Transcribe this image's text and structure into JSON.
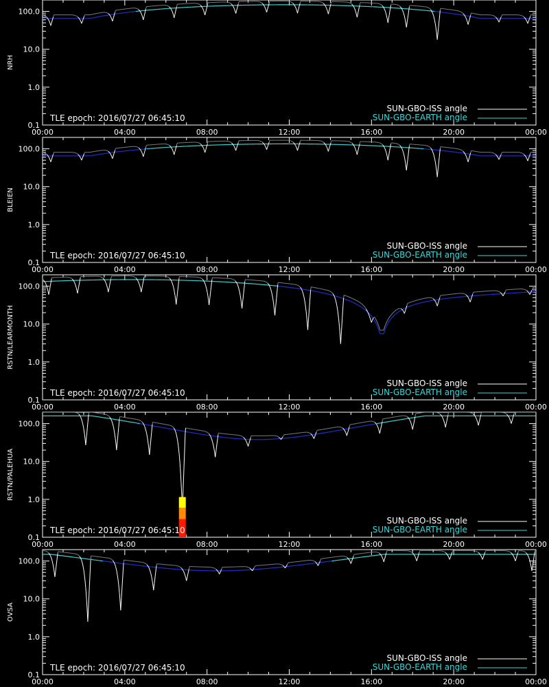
{
  "legend": {
    "iss_label": "SUN-GBO-ISS angle",
    "earth_label": "SUN-GBO-EARTH angle"
  },
  "epoch_text": "TLE epoch: 2016/07/27 06:45:10",
  "colors": {
    "iss": "#ffffff",
    "iss_far": "#8a8a8a",
    "earth_near": "#1f2fd6",
    "earth_far": "#3fd6d6",
    "frame": "#ffffff",
    "flare_low": "#ff1a00",
    "flare_mid": "#ff8a00",
    "flare_high": "#ffff00"
  },
  "chart_data": [
    {
      "type": "line",
      "ylabel": "NRH",
      "yscale": "log",
      "ylim": [
        0.1,
        200
      ],
      "xlim": [
        0,
        24
      ],
      "yticks": [
        "0.1",
        "1.0",
        "10.0",
        "100.0"
      ],
      "xticks": [
        "00:00",
        "04:00",
        "08:00",
        "12:00",
        "16:00",
        "20:00",
        "00:00"
      ],
      "earth_angle": {
        "min": 65,
        "max": 150,
        "peak_time": 11.8
      },
      "iss_dips": [
        {
          "t": 0.4,
          "min": 42
        },
        {
          "t": 1.9,
          "min": 48
        },
        {
          "t": 3.4,
          "min": 55
        },
        {
          "t": 4.9,
          "min": 60
        },
        {
          "t": 6.4,
          "min": 68
        },
        {
          "t": 7.9,
          "min": 80
        },
        {
          "t": 9.4,
          "min": 88
        },
        {
          "t": 10.9,
          "min": 95
        },
        {
          "t": 12.4,
          "min": 90
        },
        {
          "t": 13.9,
          "min": 85
        },
        {
          "t": 15.3,
          "min": 70
        },
        {
          "t": 16.8,
          "min": 50
        },
        {
          "t": 17.7,
          "min": 38
        },
        {
          "t": 19.2,
          "min": 18
        },
        {
          "t": 20.7,
          "min": 45
        },
        {
          "t": 22.2,
          "min": 52
        },
        {
          "t": 23.6,
          "min": 48
        }
      ],
      "flare": null
    },
    {
      "type": "line",
      "ylabel": "BLEIEN",
      "yscale": "log",
      "ylim": [
        0.1,
        200
      ],
      "xlim": [
        0,
        24
      ],
      "yticks": [
        "0.1",
        "1.0",
        "10.0",
        "100.0"
      ],
      "xticks": [
        "00:00",
        "04:00",
        "08:00",
        "12:00",
        "16:00",
        "20:00",
        "00:00"
      ],
      "earth_angle": {
        "min": 65,
        "max": 135,
        "peak_time": 11.8
      },
      "iss_dips": [
        {
          "t": 0.4,
          "min": 45
        },
        {
          "t": 1.9,
          "min": 50
        },
        {
          "t": 3.4,
          "min": 55
        },
        {
          "t": 4.9,
          "min": 62
        },
        {
          "t": 6.4,
          "min": 70
        },
        {
          "t": 7.9,
          "min": 80
        },
        {
          "t": 9.4,
          "min": 90
        },
        {
          "t": 10.9,
          "min": 95
        },
        {
          "t": 12.4,
          "min": 90
        },
        {
          "t": 13.9,
          "min": 85
        },
        {
          "t": 15.3,
          "min": 70
        },
        {
          "t": 16.8,
          "min": 50
        },
        {
          "t": 17.7,
          "min": 27
        },
        {
          "t": 19.2,
          "min": 18
        },
        {
          "t": 20.7,
          "min": 45
        },
        {
          "t": 22.2,
          "min": 52
        },
        {
          "t": 23.6,
          "min": 48
        }
      ],
      "flare": null
    },
    {
      "type": "line",
      "ylabel": "RSTN/LEARMONTH",
      "yscale": "log",
      "ylim": [
        0.1,
        200
      ],
      "xlim": [
        0,
        24
      ],
      "yticks": [
        "0.1",
        "1.0",
        "10.0",
        "100.0"
      ],
      "xticks": [
        "00:00",
        "04:00",
        "08:00",
        "12:00",
        "16:00",
        "20:00",
        "00:00"
      ],
      "earth_angle": {
        "min": 5.5,
        "max": 150,
        "peak_time": 4.5,
        "trough_time": 16.5
      },
      "iss_dips": [
        {
          "t": 0.3,
          "min": 60
        },
        {
          "t": 1.7,
          "min": 65
        },
        {
          "t": 3.2,
          "min": 70
        },
        {
          "t": 4.8,
          "min": 70
        },
        {
          "t": 6.5,
          "min": 33
        },
        {
          "t": 8.1,
          "min": 32
        },
        {
          "t": 9.7,
          "min": 26
        },
        {
          "t": 11.3,
          "min": 17
        },
        {
          "t": 12.9,
          "min": 7
        },
        {
          "t": 14.5,
          "min": 3
        },
        {
          "t": 16.0,
          "min": 11
        },
        {
          "t": 17.6,
          "min": 19
        },
        {
          "t": 19.2,
          "min": 30
        },
        {
          "t": 20.8,
          "min": 38
        },
        {
          "t": 22.4,
          "min": 55
        },
        {
          "t": 23.7,
          "min": 60
        }
      ],
      "flare": null
    },
    {
      "type": "line",
      "ylabel": "RSTN/PALEHUA",
      "yscale": "log",
      "ylim": [
        0.1,
        200
      ],
      "xlim": [
        0,
        24
      ],
      "yticks": [
        "0.1",
        "1.0",
        "10.0",
        "100.0"
      ],
      "xticks": [
        "00:00",
        "04:00",
        "08:00",
        "12:00",
        "16:00",
        "20:00",
        "00:00"
      ],
      "earth_angle": {
        "min": 38,
        "max": 160,
        "trough_time": 10.5
      },
      "iss_dips": [
        {
          "t": 2.1,
          "min": 27
        },
        {
          "t": 3.6,
          "min": 20
        },
        {
          "t": 5.2,
          "min": 15
        },
        {
          "t": 6.8,
          "min": 0.5
        },
        {
          "t": 8.4,
          "min": 13
        },
        {
          "t": 10.0,
          "min": 25
        },
        {
          "t": 11.6,
          "min": 38
        },
        {
          "t": 13.2,
          "min": 40
        },
        {
          "t": 14.8,
          "min": 48
        },
        {
          "t": 16.4,
          "min": 55
        },
        {
          "t": 18.0,
          "min": 70
        },
        {
          "t": 19.6,
          "min": 80
        },
        {
          "t": 21.2,
          "min": 90
        },
        {
          "t": 22.8,
          "min": 100
        }
      ],
      "flare": {
        "t": 6.8,
        "segments": [
          {
            "from": 0.1,
            "to": 0.3,
            "level": "low"
          },
          {
            "from": 0.3,
            "to": 0.6,
            "level": "mid"
          },
          {
            "from": 0.6,
            "to": 1.15,
            "level": "high"
          }
        ]
      }
    },
    {
      "type": "line",
      "ylabel": "OVSA",
      "yscale": "log",
      "ylim": [
        0.1,
        200
      ],
      "xlim": [
        0,
        24
      ],
      "yticks": [
        "0.1",
        "1.0",
        "10.0",
        "100.0"
      ],
      "xticks": [
        "00:00",
        "04:00",
        "08:00",
        "12:00",
        "16:00",
        "20:00",
        "00:00"
      ],
      "earth_angle": {
        "min": 55,
        "max": 150,
        "trough_time": 8.5,
        "end_value": 115,
        "start_value": 115
      },
      "iss_dips": [
        {
          "t": 0.6,
          "min": 38
        },
        {
          "t": 2.2,
          "min": 2.5
        },
        {
          "t": 3.8,
          "min": 5
        },
        {
          "t": 5.4,
          "min": 17
        },
        {
          "t": 7.0,
          "min": 30
        },
        {
          "t": 8.6,
          "min": 45
        },
        {
          "t": 10.2,
          "min": 55
        },
        {
          "t": 11.8,
          "min": 65
        },
        {
          "t": 13.4,
          "min": 75
        },
        {
          "t": 15.0,
          "min": 85
        },
        {
          "t": 16.6,
          "min": 95
        },
        {
          "t": 18.2,
          "min": 100
        },
        {
          "t": 19.8,
          "min": 110
        },
        {
          "t": 21.4,
          "min": 110
        },
        {
          "t": 23.0,
          "min": 100
        },
        {
          "t": 23.8,
          "min": 55
        }
      ],
      "flare": null
    }
  ]
}
